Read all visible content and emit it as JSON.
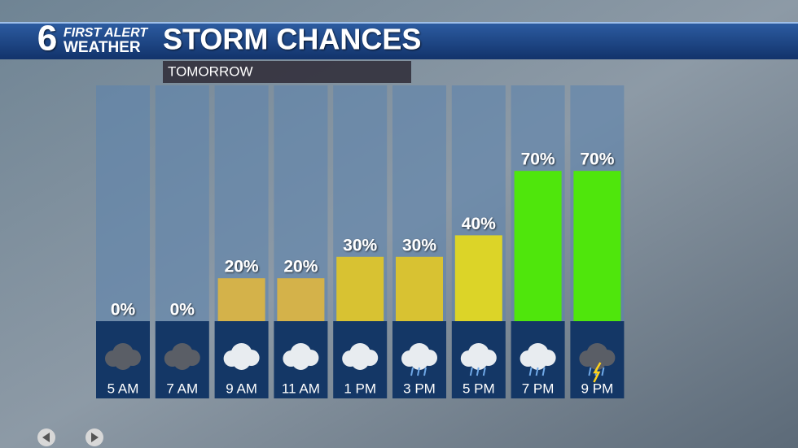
{
  "brand": {
    "number": "6",
    "line1": "FIRST ALERT",
    "line2": "WEATHER"
  },
  "chart_data": {
    "type": "bar",
    "title": "STORM CHANCES",
    "subtitle": "TOMORROW",
    "categories": [
      "5 AM",
      "7 AM",
      "9 AM",
      "11 AM",
      "1 PM",
      "3 PM",
      "5 PM",
      "7 PM",
      "9 PM"
    ],
    "values": [
      0,
      0,
      20,
      20,
      30,
      30,
      40,
      70,
      70
    ],
    "value_labels": [
      "0%",
      "0%",
      "20%",
      "20%",
      "30%",
      "30%",
      "40%",
      "70%",
      "70%"
    ],
    "colors": [
      "#d4b24a",
      "#d4b24a",
      "#d4b24a",
      "#d4b24a",
      "#d8c232",
      "#d8c232",
      "#dcd428",
      "#4fe60c",
      "#4fe60c"
    ]
  }
}
